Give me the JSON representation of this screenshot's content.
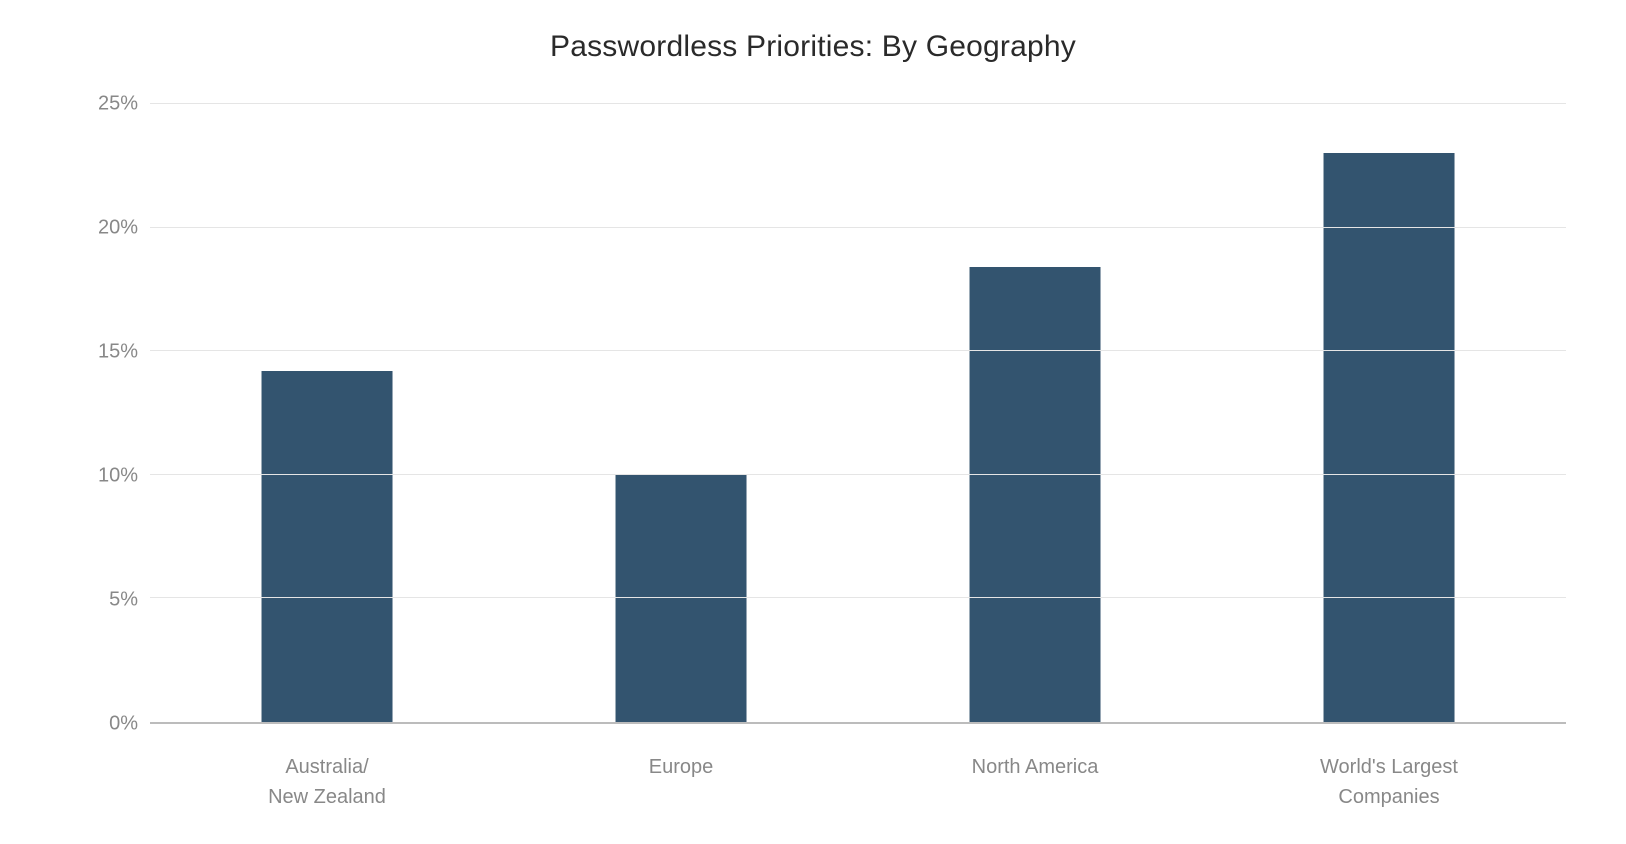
{
  "chart": {
    "type": "bar",
    "title": "Passwordless Priorities: By Geography",
    "title_fontsize": 30,
    "title_color": "#2a2a2a",
    "background_color": "#ffffff",
    "categories": [
      "Australia/\nNew Zealand",
      "Europe",
      "North America",
      "World's Largest\nCompanies"
    ],
    "values": [
      14.2,
      10.0,
      18.4,
      23.0
    ],
    "bar_color": "#33546f",
    "bar_width_pct": 37,
    "ylim": [
      0,
      25
    ],
    "ytick_step": 5,
    "ytick_labels": [
      "0%",
      "5%",
      "10%",
      "15%",
      "20%",
      "25%"
    ],
    "ytick_values": [
      0,
      5,
      10,
      15,
      20,
      25
    ],
    "axis_label_color": "#888888",
    "axis_label_fontsize": 20,
    "grid_color": "#e5e5e5",
    "baseline_color": "#bcbcbc"
  }
}
